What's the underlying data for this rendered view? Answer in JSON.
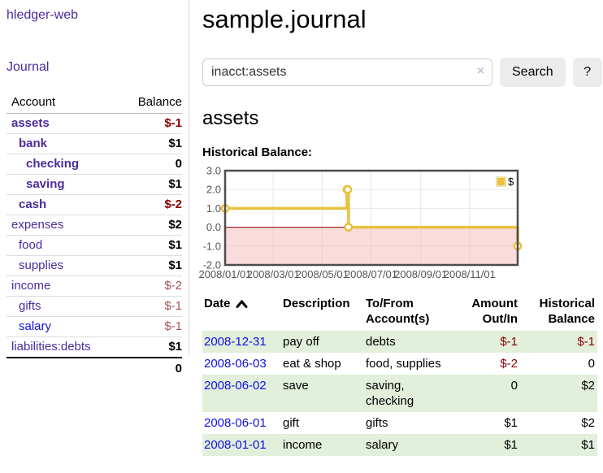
{
  "sidebar": {
    "brand": "hledger-web",
    "journal_link": "Journal",
    "accounts_table": {
      "account_header": "Account",
      "balance_header": "Balance",
      "rows": [
        {
          "name": "assets",
          "level": 0,
          "matched": true,
          "link": "visited",
          "balance": "$-1",
          "negative": true
        },
        {
          "name": "bank",
          "level": 1,
          "matched": true,
          "link": "visited",
          "balance": "$1",
          "negative": false
        },
        {
          "name": "checking",
          "level": 2,
          "matched": true,
          "link": "visited",
          "balance": "0",
          "negative": false
        },
        {
          "name": "saving",
          "level": 2,
          "matched": true,
          "link": "visited",
          "balance": "$1",
          "negative": false
        },
        {
          "name": "cash",
          "level": 1,
          "matched": true,
          "link": "visited",
          "balance": "$-2",
          "negative": true
        },
        {
          "name": "expenses",
          "level": 0,
          "matched": false,
          "link": "visited",
          "balance": "$2",
          "negative": false
        },
        {
          "name": "food",
          "level": 1,
          "matched": false,
          "link": "visited",
          "balance": "$1",
          "negative": false
        },
        {
          "name": "supplies",
          "level": 1,
          "matched": false,
          "link": "visited",
          "balance": "$1",
          "negative": false
        },
        {
          "name": "income",
          "level": 0,
          "matched": false,
          "link": "visited",
          "balance": "$-2",
          "negative": true
        },
        {
          "name": "gifts",
          "level": 1,
          "matched": false,
          "link": "visited",
          "balance": "$-1",
          "negative": true
        },
        {
          "name": "salary",
          "level": 1,
          "matched": false,
          "link": "unvisited",
          "balance": "$-1",
          "negative": true
        },
        {
          "name": "liabilities:debts",
          "level": 0,
          "matched": false,
          "link": "visited",
          "balance": "$1",
          "negative": false
        }
      ],
      "total": "0"
    }
  },
  "header": {
    "title": "sample.journal"
  },
  "search": {
    "query": "inacct:assets",
    "clear_icon": "×",
    "button_label": "Search",
    "help_label": "?"
  },
  "account_page": {
    "heading": "assets",
    "chart_label": "Historical Balance:"
  },
  "chart_data": {
    "type": "line",
    "step": true,
    "title": "Historical Balance:",
    "series": [
      {
        "name": "$",
        "color": "#e8c240",
        "points": [
          [
            "2008-01-01",
            1
          ],
          [
            "2008-06-01",
            2
          ],
          [
            "2008-06-02",
            2
          ],
          [
            "2008-06-03",
            0
          ],
          [
            "2008-12-31",
            -1
          ]
        ]
      }
    ],
    "x_range": [
      "2008-01-01",
      "2008-12-31"
    ],
    "x_ticks": [
      {
        "date": "2008-01-01",
        "label": "2008/01/01"
      },
      {
        "date": "2008-03-01",
        "label": "2008/03/01"
      },
      {
        "date": "2008-05-01",
        "label": "2008/05/01"
      },
      {
        "date": "2008-07-01",
        "label": "2008/07/01"
      },
      {
        "date": "2008-09-01",
        "label": "2008/09/01"
      },
      {
        "date": "2008-11-01",
        "label": "2008/11/01"
      }
    ],
    "ylim": [
      -2,
      3
    ],
    "y_ticks": [
      {
        "v": 3,
        "label": "3.0"
      },
      {
        "v": 2,
        "label": "2.0"
      },
      {
        "v": 1,
        "label": "1.0"
      },
      {
        "v": 0,
        "label": "0.0"
      },
      {
        "v": -1,
        "label": "-1.0"
      },
      {
        "v": -2,
        "label": "-2.0"
      }
    ],
    "legend": {
      "position": "top-right",
      "entries": [
        {
          "swatch": "#e8c240",
          "label": "$"
        }
      ]
    },
    "grid": true,
    "grid_color": "#e7e7e7",
    "border_color": "#4d4d4d",
    "zero_line_color": "#8b0000",
    "negative_region_color": "#f5baba",
    "tick_label_color": "#545454"
  },
  "register": {
    "headers": [
      {
        "label": "Date",
        "align": "left",
        "sorted_asc": true
      },
      {
        "label": "Description",
        "align": "left"
      },
      {
        "label": "To/From Account(s)",
        "align": "left"
      },
      {
        "label": "Amount Out/In",
        "align": "right"
      },
      {
        "label": "Historical Balance",
        "align": "right"
      }
    ],
    "rows": [
      {
        "date": "2008-12-31",
        "description": "pay off",
        "accounts": "debts",
        "amount": "$-1",
        "amount_negative": true,
        "balance": "$-1",
        "balance_negative": true
      },
      {
        "date": "2008-06-03",
        "description": "eat & shop",
        "accounts": "food, supplies",
        "amount": "$-2",
        "amount_negative": true,
        "balance": "0",
        "balance_negative": false
      },
      {
        "date": "2008-06-02",
        "description": "save",
        "accounts": "saving, checking",
        "amount": "0",
        "amount_negative": false,
        "balance": "$2",
        "balance_negative": false
      },
      {
        "date": "2008-06-01",
        "description": "gift",
        "accounts": "gifts",
        "amount": "$1",
        "amount_negative": false,
        "balance": "$2",
        "balance_negative": false
      },
      {
        "date": "2008-01-01",
        "description": "income",
        "accounts": "salary",
        "amount": "$1",
        "amount_negative": false,
        "balance": "$1",
        "balance_negative": false
      }
    ]
  },
  "colors": {
    "visited_link": "#4b2b9e",
    "unvisited_link": "#0f10e0",
    "negative_bold": "#8b0000",
    "negative_regular": "#a85454",
    "stripe_green": "#e1efdb",
    "chart_line": "#e8c240"
  }
}
